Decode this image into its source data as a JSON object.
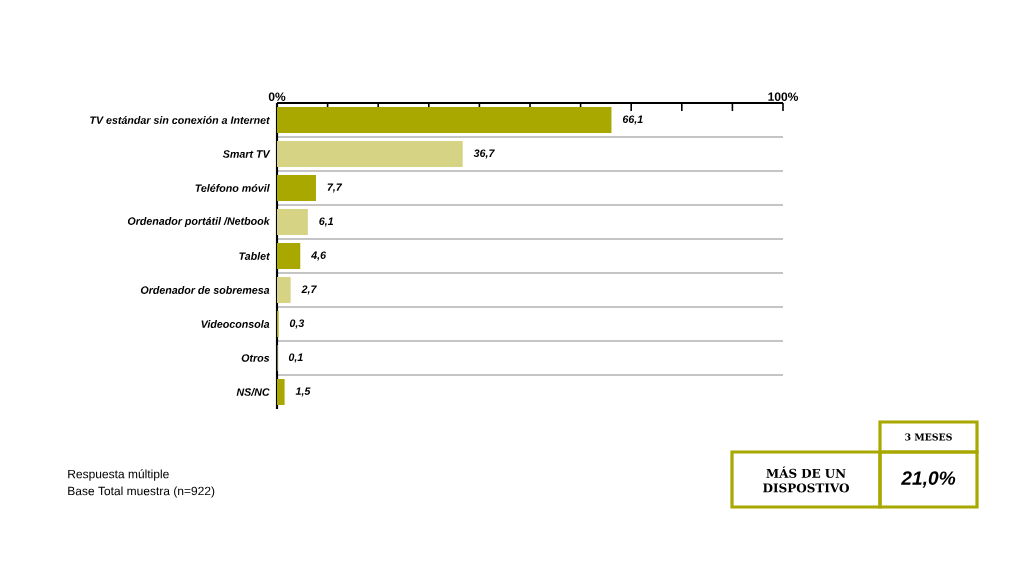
{
  "chart_data": {
    "type": "bar",
    "orientation": "horizontal",
    "categories": [
      "TV estándar sin conexión a Internet",
      "Smart TV",
      "Teléfono móvil",
      "Ordenador portátil /Netbook",
      "Tablet",
      "Ordenador de sobremesa",
      "Videoconsola",
      "Otros",
      "NS/NC"
    ],
    "values": [
      66.1,
      36.7,
      7.7,
      6.1,
      4.6,
      2.7,
      0.3,
      0.1,
      1.5
    ],
    "value_labels": [
      "66,1",
      "36,7",
      "7,7",
      "6,1",
      "4,6",
      "2,7",
      "0,3",
      "0,1",
      "1,5"
    ],
    "colors": [
      "#a8a800",
      "#d6d384",
      "#a8a800",
      "#d6d384",
      "#a8a800",
      "#d6d384",
      "#a8a800",
      "#d6d384",
      "#a8a800"
    ],
    "xlim": [
      0,
      100
    ],
    "xticks": [
      {
        "value": 0,
        "label": "0%"
      },
      {
        "value": 10,
        "label": null
      },
      {
        "value": 20,
        "label": null
      },
      {
        "value": 30,
        "label": null
      },
      {
        "value": 40,
        "label": null
      },
      {
        "value": 50,
        "label": null
      },
      {
        "value": 60,
        "label": null
      },
      {
        "value": 70,
        "label": null
      },
      {
        "value": 80,
        "label": null
      },
      {
        "value": 90,
        "label": null
      },
      {
        "value": 100,
        "label": "100%"
      }
    ],
    "grid": "y",
    "annotations": [
      "Respuesta múltiple",
      "Base Total muestra (n=922)",
      "3 MESES",
      "MÁS DE UN DISPOSTIVO",
      "21,0%"
    ]
  }
}
